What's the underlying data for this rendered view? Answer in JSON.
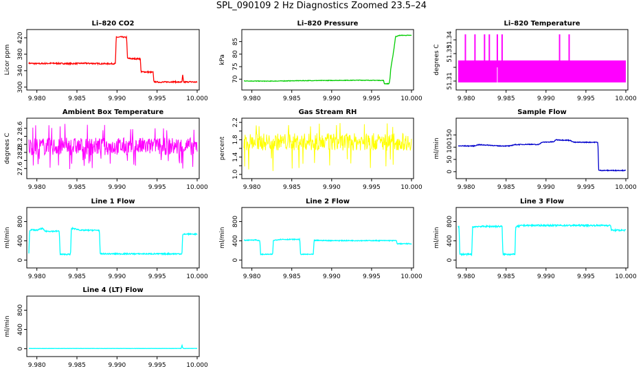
{
  "title": "SPL_090109  2 Hz Diagnostics Zoomed 23.5–24",
  "chart_data": [
    {
      "type": "line",
      "title": "Li–820 CO2",
      "ylabel": "Licor ppm",
      "color": "#ff0000",
      "xlim": [
        9.979,
        10.0
      ],
      "ylim": [
        298,
        435
      ],
      "xticks": [
        "9.980",
        "9.985",
        "9.990",
        "9.995",
        "10.000"
      ],
      "yticks": [
        300,
        340,
        380,
        420
      ],
      "series": [
        {
          "x": [
            9.979,
            9.98,
            9.982,
            9.984,
            9.986,
            9.988,
            9.9898,
            9.9899,
            9.9905,
            9.991,
            9.9912,
            9.9913,
            9.992,
            9.9929,
            9.993,
            9.9935,
            9.9945,
            9.9946,
            9.9955,
            9.997,
            9.9981,
            9.9982,
            9.9983,
            9.999,
            10.0
          ],
          "y": [
            358,
            357,
            358,
            357,
            358,
            357,
            357,
            421,
            422,
            421,
            421,
            370,
            369,
            369,
            337,
            337,
            336,
            313,
            312,
            313,
            312,
            330,
            312,
            313,
            312
          ],
          "noise": 1.5
        }
      ]
    },
    {
      "type": "line",
      "title": "Li–820 Pressure",
      "ylabel": "kPa",
      "color": "#00cc00",
      "xlim": [
        9.979,
        10.0
      ],
      "ylim": [
        66.5,
        89
      ],
      "xticks": [
        "9.980",
        "9.985",
        "9.990",
        "9.995",
        "10.000"
      ],
      "yticks": [
        70,
        75,
        80,
        85
      ],
      "series": [
        {
          "x": [
            9.979,
            9.982,
            9.986,
            9.99,
            9.9935,
            9.9965,
            9.9966,
            9.9972,
            9.9973,
            9.9974,
            9.9976,
            9.9978,
            9.998,
            9.9985,
            10.0
          ],
          "y": [
            69.3,
            69.2,
            69.4,
            69.5,
            69.6,
            69.5,
            68.2,
            68.2,
            70.2,
            74,
            78,
            82,
            87,
            87.5,
            87.5
          ],
          "noise": 0.1
        }
      ]
    },
    {
      "type": "line",
      "title": "Li–820 Temperature",
      "ylabel": "degrees C",
      "color": "#ff00ff",
      "xlim": [
        9.979,
        10.0
      ],
      "ylim": [
        51.305,
        51.346
      ],
      "xticks": [
        "9.980",
        "9.985",
        "9.990",
        "9.995",
        "10.000"
      ],
      "yticks": [
        51.31,
        51.32,
        51.33,
        51.34
      ],
      "tick_labels_y": [
        "51.31",
        "",
        "51.33",
        "51.34"
      ],
      "band": [
        51.309,
        51.325
      ],
      "spikes_x": [
        9.9799,
        9.9811,
        9.9823,
        9.9829,
        9.9839,
        9.9845,
        9.9917,
        9.9929
      ],
      "spike_top": 51.344,
      "gap_x": 9.9839
    },
    {
      "type": "line",
      "title": "Ambient Box Temperature",
      "ylabel": "degrees C",
      "color": "#ff00ff",
      "xlim": [
        9.979,
        10.0
      ],
      "ylim": [
        27.4,
        28.8
      ],
      "xticks": [
        "9.980",
        "9.985",
        "9.990",
        "9.995",
        "10.000"
      ],
      "yticks": [
        27.6,
        27.8,
        28.0,
        28.2,
        28.4,
        28.6
      ],
      "tick_labels_y": [
        "27.6",
        "",
        "28.0",
        "28.2",
        "",
        "28.6"
      ],
      "noisy_band": {
        "center": 28.15,
        "half": 0.22,
        "spike_lo": 27.55,
        "spike_hi": 28.72,
        "n": 420
      }
    },
    {
      "type": "line",
      "title": "Gas Stream RH",
      "ylabel": "percent",
      "color": "#ffff00",
      "xlim": [
        9.979,
        10.0
      ],
      "ylim": [
        0.95,
        2.25
      ],
      "xticks": [
        "9.980",
        "9.985",
        "9.990",
        "9.995",
        "10.000"
      ],
      "yticks": [
        1.0,
        1.2,
        1.4,
        1.6,
        1.8,
        2.0,
        2.2
      ],
      "tick_labels_y": [
        "1.0",
        "",
        "1.4",
        "",
        "1.8",
        "",
        "2.2"
      ],
      "noisy_band": {
        "center": 1.75,
        "half": 0.2,
        "spike_lo": 1.05,
        "spike_hi": 2.2,
        "n": 420
      }
    },
    {
      "type": "line",
      "title": "Sample Flow",
      "ylabel": "ml/min",
      "color": "#0000cc",
      "xlim": [
        9.979,
        10.0
      ],
      "ylim": [
        -20,
        210
      ],
      "xticks": [
        "9.980",
        "9.985",
        "9.990",
        "9.995",
        "10.000"
      ],
      "yticks": [
        0,
        50,
        100,
        150
      ],
      "series": [
        {
          "x": [
            9.979,
            9.981,
            9.9815,
            9.983,
            9.984,
            9.9855,
            9.986,
            9.988,
            9.989,
            9.9895,
            9.991,
            9.9912,
            9.993,
            9.9935,
            9.9965,
            9.9966,
            9.997,
            10.0
          ],
          "y": [
            105,
            105,
            110,
            108,
            105,
            105,
            110,
            112,
            110,
            120,
            122,
            130,
            128,
            120,
            120,
            5,
            5,
            5
          ],
          "noise": 1.5
        }
      ]
    },
    {
      "type": "line",
      "title": "Line 1 Flow",
      "ylabel": "ml/min",
      "color": "#00ffff",
      "xlim": [
        9.979,
        10.0
      ],
      "ylim": [
        -120,
        1050
      ],
      "xticks": [
        "9.980",
        "9.985",
        "9.990",
        "9.995",
        "10.000"
      ],
      "yticks": [
        0,
        400,
        800
      ],
      "tick_labels_y": [
        "0",
        "400",
        "800"
      ],
      "series": [
        {
          "x": [
            9.979,
            9.9791,
            9.9793,
            9.98,
            9.9807,
            9.981,
            9.9828,
            9.9829,
            9.9842,
            9.9843,
            9.9845,
            9.9855,
            9.9878,
            9.9879,
            9.9981,
            9.9982,
            9.9985,
            10.0
          ],
          "y": [
            130,
            620,
            630,
            620,
            660,
            600,
            600,
            120,
            120,
            650,
            660,
            620,
            620,
            130,
            130,
            530,
            540,
            540
          ],
          "noise": 12
        }
      ]
    },
    {
      "type": "line",
      "title": "Line 2 Flow",
      "ylabel": "ml/min",
      "color": "#00ffff",
      "xlim": [
        9.979,
        10.0
      ],
      "ylim": [
        -120,
        1050
      ],
      "xticks": [
        "9.980",
        "9.985",
        "9.990",
        "9.995",
        "10.000"
      ],
      "yticks": [
        0,
        400,
        800
      ],
      "tick_labels_y": [
        "0",
        "400",
        "800"
      ],
      "series": [
        {
          "x": [
            9.979,
            9.9805,
            9.981,
            9.9811,
            9.9826,
            9.9827,
            9.9835,
            9.986,
            9.9861,
            9.9877,
            9.9878,
            9.99,
            9.9981,
            9.9982,
            10.0
          ],
          "y": [
            410,
            420,
            400,
            120,
            120,
            410,
            430,
            430,
            120,
            120,
            410,
            405,
            405,
            340,
            340
          ],
          "noise": 8
        }
      ]
    },
    {
      "type": "line",
      "title": "Line 3 Flow",
      "ylabel": "ml/min",
      "color": "#00ffff",
      "xlim": [
        9.979,
        10.0
      ],
      "ylim": [
        -120,
        1050
      ],
      "xticks": [
        "9.980",
        "9.985",
        "9.990",
        "9.995",
        "10.000"
      ],
      "yticks": [
        0,
        400,
        800
      ],
      "tick_labels_y": [
        "0",
        "400",
        "800"
      ],
      "series": [
        {
          "x": [
            9.979,
            9.9791,
            9.9792,
            9.9807,
            9.9808,
            9.9815,
            9.983,
            9.9845,
            9.9846,
            9.9861,
            9.9862,
            9.987,
            9.993,
            9.9981,
            9.9982,
            10.0
          ],
          "y": [
            700,
            700,
            120,
            120,
            690,
            700,
            700,
            700,
            120,
            120,
            690,
            720,
            720,
            720,
            620,
            620
          ],
          "noise": 15
        }
      ]
    },
    {
      "type": "line",
      "title": "Line 4 (LT) Flow",
      "ylabel": "ml/min",
      "color": "#00ffff",
      "xlim": [
        9.979,
        10.0
      ],
      "ylim": [
        -120,
        1050
      ],
      "xticks": [
        "9.980",
        "9.985",
        "9.990",
        "9.995",
        "10.000"
      ],
      "yticks": [
        0,
        400,
        800
      ],
      "tick_labels_y": [
        "0",
        "400",
        "800"
      ],
      "series": [
        {
          "x": [
            9.979,
            9.985,
            9.99,
            9.998,
            9.9981,
            9.9982,
            9.9983,
            10.0
          ],
          "y": [
            5,
            5,
            5,
            5,
            75,
            20,
            5,
            5
          ],
          "noise": 2
        }
      ]
    }
  ]
}
